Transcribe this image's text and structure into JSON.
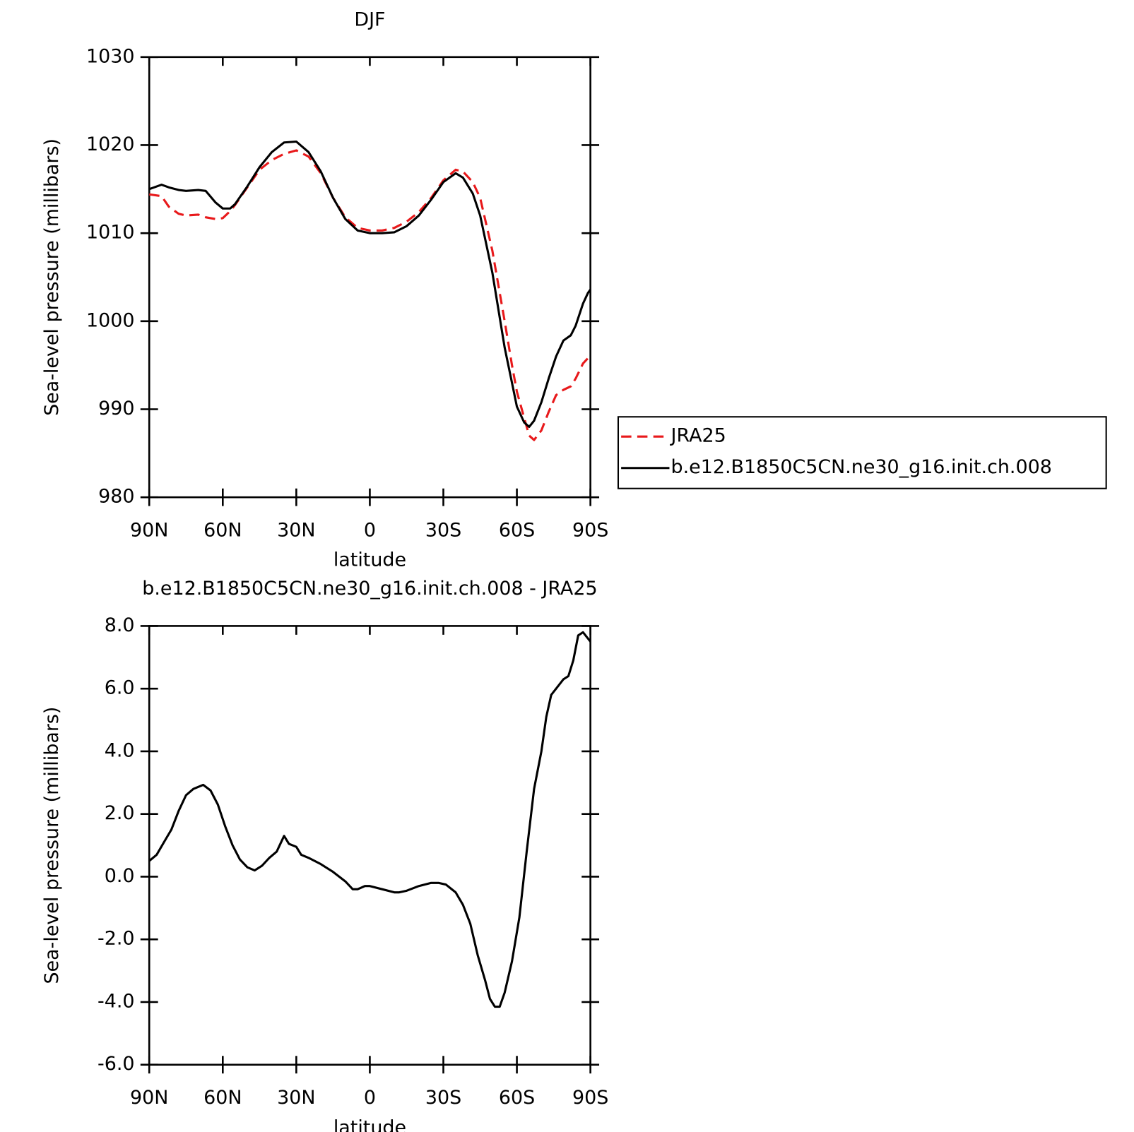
{
  "chart_data": [
    {
      "type": "line",
      "title": "DJF",
      "x_label": "latitude",
      "y_label": "Sea-level pressure (millibars)",
      "x": [
        90,
        85,
        82,
        78,
        75,
        70,
        67,
        63,
        60,
        57,
        55,
        50,
        45,
        40,
        35,
        30,
        25,
        20,
        15,
        10,
        5,
        0,
        -5,
        -10,
        -15,
        -20,
        -25,
        -30,
        -35,
        -38,
        -42,
        -45,
        -50,
        -55,
        -58,
        -60,
        -63,
        -65,
        -67,
        -70,
        -73,
        -76,
        -79,
        -82,
        -84,
        -87,
        -89,
        -90
      ],
      "series": [
        {
          "name": "JRA25",
          "color": "#e8191b",
          "dash": true,
          "values": [
            1014.4,
            1014.2,
            1013.0,
            1012.2,
            1012.0,
            1012.1,
            1011.8,
            1011.6,
            1011.7,
            1012.5,
            1013.2,
            1015.2,
            1017.2,
            1018.3,
            1019.0,
            1019.4,
            1018.7,
            1016.8,
            1014.0,
            1011.8,
            1010.6,
            1010.3,
            1010.3,
            1010.6,
            1011.3,
            1012.4,
            1014.0,
            1016.0,
            1017.2,
            1017.0,
            1015.8,
            1014.0,
            1008.0,
            1000.0,
            995.0,
            992.0,
            989.0,
            987.0,
            986.5,
            987.6,
            989.7,
            991.6,
            992.2,
            992.6,
            993.5,
            995.2,
            995.8,
            996.0
          ]
        },
        {
          "name": "b.e12.B1850C5CN.ne30_g16.init.ch.008",
          "color": "#000000",
          "dash": false,
          "values": [
            1015.0,
            1015.5,
            1015.2,
            1014.9,
            1014.8,
            1014.9,
            1014.8,
            1013.5,
            1012.8,
            1012.8,
            1013.3,
            1015.3,
            1017.5,
            1019.2,
            1020.3,
            1020.4,
            1019.2,
            1017.0,
            1014.0,
            1011.6,
            1010.3,
            1010.0,
            1010.0,
            1010.1,
            1010.8,
            1012.0,
            1013.8,
            1015.8,
            1016.8,
            1016.3,
            1014.5,
            1012.0,
            1005.5,
            997.0,
            993.0,
            990.3,
            988.5,
            988.0,
            988.7,
            990.8,
            993.5,
            996.0,
            997.8,
            998.4,
            999.5,
            1002.0,
            1003.2,
            1003.6
          ]
        }
      ],
      "xlim": [
        90,
        -90
      ],
      "xticks": [
        {
          "value": 90,
          "label": "90N"
        },
        {
          "value": 60,
          "label": "60N"
        },
        {
          "value": 30,
          "label": "30N"
        },
        0,
        {
          "value": -30,
          "label": "30S"
        },
        {
          "value": -60,
          "label": "60S"
        },
        {
          "value": -90,
          "label": "90S"
        }
      ],
      "ylim": [
        980,
        1030
      ],
      "yticks": [
        980,
        990,
        1000,
        1010,
        1020,
        1030
      ],
      "legend": "right"
    },
    {
      "type": "line",
      "title": "b.e12.B1850C5CN.ne30_g16.init.ch.008 - JRA25",
      "x_label": "latitude",
      "y_label": "Sea-level pressure (millibars)",
      "x": [
        90,
        87,
        84,
        81,
        78,
        75,
        72,
        68,
        65,
        62,
        59,
        56,
        53,
        50,
        47,
        44,
        41,
        38,
        35,
        33,
        30,
        28,
        25,
        20,
        15,
        10,
        7,
        5,
        2,
        0,
        -5,
        -10,
        -12,
        -15,
        -20,
        -25,
        -28,
        -31,
        -35,
        -38,
        -41,
        -44,
        -47,
        -49,
        -51,
        -53,
        -55,
        -58,
        -61,
        -64,
        -67,
        -70,
        -72,
        -74,
        -77,
        -79,
        -81,
        -83,
        -85,
        -87,
        -90
      ],
      "values": [
        0.5,
        0.7,
        1.1,
        1.5,
        2.1,
        2.6,
        2.8,
        2.93,
        2.75,
        2.3,
        1.6,
        1.0,
        0.55,
        0.3,
        0.2,
        0.35,
        0.6,
        0.8,
        1.3,
        1.05,
        0.95,
        0.7,
        0.6,
        0.4,
        0.15,
        -0.15,
        -0.4,
        -0.4,
        -0.3,
        -0.3,
        -0.4,
        -0.5,
        -0.5,
        -0.45,
        -0.3,
        -0.2,
        -0.2,
        -0.25,
        -0.5,
        -0.9,
        -1.5,
        -2.5,
        -3.3,
        -3.9,
        -4.15,
        -4.15,
        -3.7,
        -2.7,
        -1.3,
        0.8,
        2.8,
        4.0,
        5.1,
        5.8,
        6.1,
        6.3,
        6.4,
        6.9,
        7.7,
        7.8,
        7.5
      ],
      "color": "#000000",
      "xlim": [
        90,
        -90
      ],
      "xticks": [
        {
          "value": 90,
          "label": "90N"
        },
        {
          "value": 60,
          "label": "60N"
        },
        {
          "value": 30,
          "label": "30N"
        },
        0,
        {
          "value": -30,
          "label": "30S"
        },
        {
          "value": -60,
          "label": "60S"
        },
        {
          "value": -90,
          "label": "90S"
        }
      ],
      "ylim": [
        -6,
        8
      ],
      "yticks": [
        {
          "value": -6,
          "label": "-6.0"
        },
        {
          "value": -4,
          "label": "-4.0"
        },
        {
          "value": -2,
          "label": "-2.0"
        },
        {
          "value": 0,
          "label": "0.0"
        },
        {
          "value": 2,
          "label": "2.0"
        },
        {
          "value": 4,
          "label": "4.0"
        },
        {
          "value": 6,
          "label": "6.0"
        },
        {
          "value": 8,
          "label": "8.0"
        }
      ]
    }
  ]
}
